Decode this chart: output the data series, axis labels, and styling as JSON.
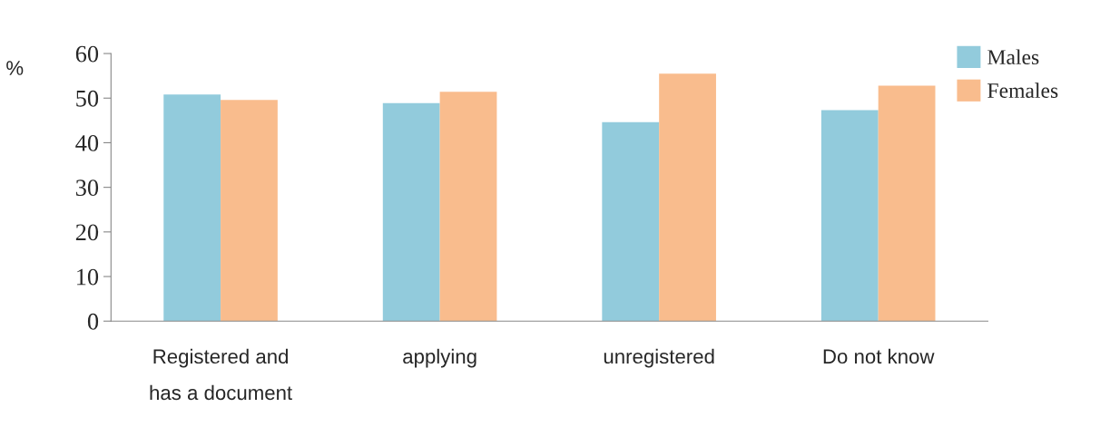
{
  "chart_data": {
    "type": "bar",
    "ylabel": "%",
    "categories": [
      "Registered and\nhas a document",
      "applying",
      "unregistered",
      "Do not know"
    ],
    "series": [
      {
        "name": "Males",
        "color": "#92cbdc",
        "values": [
          50.8,
          48.9,
          44.6,
          47.3
        ]
      },
      {
        "name": "Females",
        "color": "#f9bc8d",
        "values": [
          49.6,
          51.4,
          55.5,
          52.8
        ]
      }
    ],
    "ylim": [
      0,
      60
    ],
    "yticks": [
      0,
      10,
      20,
      30,
      40,
      50,
      60
    ],
    "grid": false,
    "legend": "top right"
  }
}
